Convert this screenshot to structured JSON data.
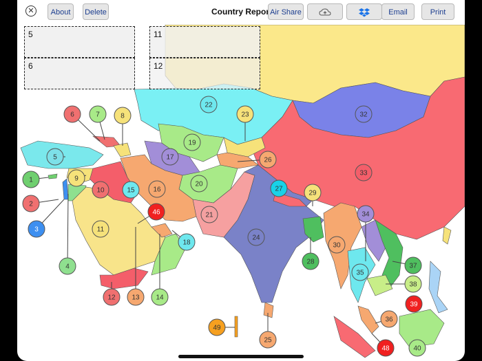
{
  "toolbar": {
    "about_label": "About",
    "delete_label": "Delete",
    "title": "Country Report",
    "air_share_label": "Air Share",
    "email_label": "Email",
    "print_label": "Print",
    "close_icon": "close-icon",
    "cloud_icon": "cloud-upload-icon",
    "dropbox_icon": "dropbox-icon"
  },
  "boxes": [
    {
      "id": "5",
      "label": "5"
    },
    {
      "id": "6",
      "label": "6"
    },
    {
      "id": "11",
      "label": "11"
    },
    {
      "id": "12",
      "label": "12"
    }
  ],
  "markers": [
    {
      "label": "1",
      "color": "#6fcf6f"
    },
    {
      "label": "2",
      "color": "#f07070"
    },
    {
      "label": "3",
      "color": "#3d8ff0"
    },
    {
      "label": "4",
      "color": "#8fe08f"
    },
    {
      "label": "5",
      "color": "#7de0e8"
    },
    {
      "label": "6",
      "color": "#f07070"
    },
    {
      "label": "7",
      "color": "#a8ea88"
    },
    {
      "label": "8",
      "color": "#f6e27a"
    },
    {
      "label": "9",
      "color": "#f6e27a"
    },
    {
      "label": "10",
      "color": "#f07070"
    },
    {
      "label": "11",
      "color": "#f6e27a"
    },
    {
      "label": "12",
      "color": "#f07070"
    },
    {
      "label": "13",
      "color": "#f6a870"
    },
    {
      "label": "14",
      "color": "#a8ea88"
    },
    {
      "label": "15",
      "color": "#6ee8ee"
    },
    {
      "label": "16",
      "color": "#f6a870"
    },
    {
      "label": "17",
      "color": "#a28ed8"
    },
    {
      "label": "18",
      "color": "#6ee8ee"
    },
    {
      "label": "19",
      "color": "#a8ea88"
    },
    {
      "label": "20",
      "color": "#a8ea88"
    },
    {
      "label": "21",
      "color": "#f4a0a0"
    },
    {
      "label": "22",
      "color": "#6ee8ee"
    },
    {
      "label": "23",
      "color": "#f6e27a"
    },
    {
      "label": "24",
      "color": "#7a82c8"
    },
    {
      "label": "25",
      "color": "#f6a870"
    },
    {
      "label": "26",
      "color": "#f6a870"
    },
    {
      "label": "27",
      "color": "#18d2e8"
    },
    {
      "label": "28",
      "color": "#4fbf5f"
    },
    {
      "label": "29",
      "color": "#f6e27a"
    },
    {
      "label": "30",
      "color": "#f6a870"
    },
    {
      "label": "32",
      "color": "#7a82e8"
    },
    {
      "label": "33",
      "color": "#f45e6a"
    },
    {
      "label": "34",
      "color": "#a28ed8"
    },
    {
      "label": "35",
      "color": "#6ee8ee"
    },
    {
      "label": "36",
      "color": "#f6a870"
    },
    {
      "label": "37",
      "color": "#4fbf5f"
    },
    {
      "label": "38",
      "color": "#c8ee88"
    },
    {
      "label": "39",
      "color": "#f02020"
    },
    {
      "label": "40",
      "color": "#a8ea88"
    },
    {
      "label": "46",
      "color": "#f02020"
    },
    {
      "label": "48",
      "color": "#f02020"
    },
    {
      "label": "49",
      "color": "#f6a020"
    }
  ]
}
